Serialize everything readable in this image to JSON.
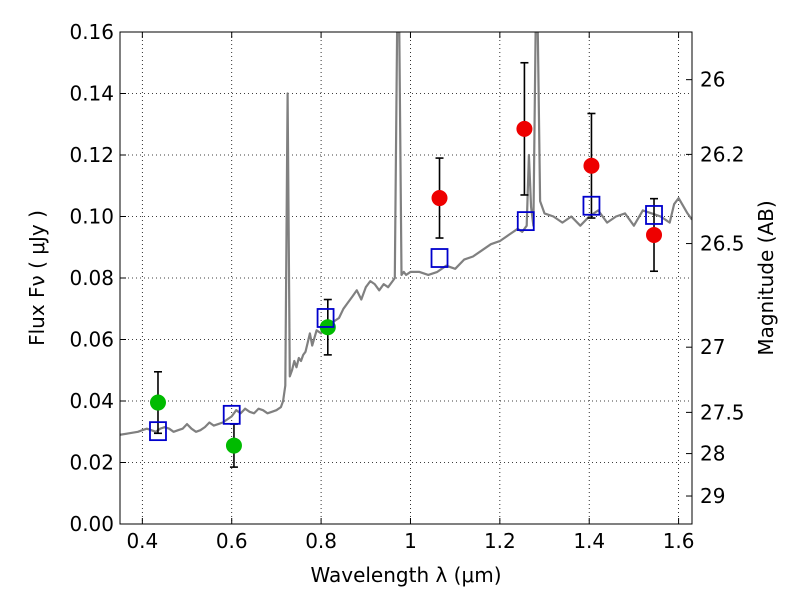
{
  "chart_data": {
    "type": "scatter",
    "xlabel": "Wavelength  λ (μm)",
    "ylabel": "Flux  Fν  ( μJy )",
    "ylabel_right": "Magnitude (AB)",
    "xlim": [
      0.35,
      1.63
    ],
    "ylim": [
      0.0,
      0.16
    ],
    "grid": true,
    "x_ticks": [
      0.4,
      0.6,
      0.8,
      1.0,
      1.2,
      1.4,
      1.6
    ],
    "x_tick_labels": [
      "0.4",
      "0.6",
      "0.8",
      "1",
      "1.2",
      "1.4",
      "1.6"
    ],
    "y_ticks": [
      0.0,
      0.02,
      0.04,
      0.06,
      0.08,
      0.1,
      0.12,
      0.14,
      0.16
    ],
    "y_tick_labels": [
      "0.00",
      "0.02",
      "0.04",
      "0.06",
      "0.08",
      "0.10",
      "0.12",
      "0.14",
      "0.16"
    ],
    "right_ticks": [
      {
        "label": "26",
        "flux": 0.1445
      },
      {
        "label": "26.2",
        "flux": 0.1202
      },
      {
        "label": "26.5",
        "flux": 0.0912
      },
      {
        "label": "27",
        "flux": 0.0575
      },
      {
        "label": "27.5",
        "flux": 0.0363
      },
      {
        "label": "28",
        "flux": 0.0229
      },
      {
        "label": "29",
        "flux": 0.0091
      }
    ],
    "series": [
      {
        "kind": "line",
        "color": "#808080",
        "x": [
          0.35,
          0.37,
          0.39,
          0.4,
          0.41,
          0.42,
          0.43,
          0.44,
          0.45,
          0.46,
          0.47,
          0.48,
          0.49,
          0.5,
          0.51,
          0.52,
          0.53,
          0.54,
          0.55,
          0.56,
          0.57,
          0.58,
          0.59,
          0.6,
          0.61,
          0.62,
          0.63,
          0.64,
          0.65,
          0.66,
          0.67,
          0.68,
          0.69,
          0.7,
          0.71,
          0.715,
          0.72,
          0.725,
          0.73,
          0.735,
          0.74,
          0.745,
          0.75,
          0.755,
          0.76,
          0.765,
          0.77,
          0.775,
          0.78,
          0.79,
          0.8,
          0.81,
          0.82,
          0.83,
          0.84,
          0.85,
          0.86,
          0.87,
          0.88,
          0.89,
          0.9,
          0.91,
          0.92,
          0.93,
          0.94,
          0.95,
          0.96,
          0.965,
          0.97,
          0.975,
          0.98,
          0.985,
          0.99,
          1.0,
          1.02,
          1.04,
          1.06,
          1.08,
          1.1,
          1.12,
          1.14,
          1.16,
          1.18,
          1.2,
          1.22,
          1.24,
          1.25,
          1.26,
          1.265,
          1.27,
          1.275,
          1.28,
          1.285,
          1.29,
          1.3,
          1.32,
          1.34,
          1.36,
          1.38,
          1.4,
          1.42,
          1.44,
          1.46,
          1.48,
          1.5,
          1.52,
          1.54,
          1.56,
          1.58,
          1.59,
          1.6,
          1.62,
          1.63
        ],
        "y": [
          0.029,
          0.0295,
          0.03,
          0.0305,
          0.031,
          0.0305,
          0.03,
          0.031,
          0.0315,
          0.031,
          0.03,
          0.0305,
          0.031,
          0.0325,
          0.031,
          0.03,
          0.0305,
          0.0315,
          0.033,
          0.032,
          0.0325,
          0.033,
          0.034,
          0.035,
          0.037,
          0.036,
          0.0375,
          0.0365,
          0.036,
          0.0375,
          0.037,
          0.036,
          0.0365,
          0.037,
          0.038,
          0.04,
          0.045,
          0.14,
          0.048,
          0.05,
          0.053,
          0.051,
          0.054,
          0.053,
          0.055,
          0.056,
          0.059,
          0.062,
          0.058,
          0.063,
          0.062,
          0.065,
          0.064,
          0.066,
          0.067,
          0.07,
          0.072,
          0.074,
          0.076,
          0.073,
          0.077,
          0.079,
          0.078,
          0.076,
          0.078,
          0.077,
          0.079,
          0.08,
          0.16,
          0.16,
          0.081,
          0.082,
          0.081,
          0.082,
          0.082,
          0.081,
          0.082,
          0.084,
          0.083,
          0.086,
          0.087,
          0.089,
          0.091,
          0.092,
          0.094,
          0.096,
          0.095,
          0.097,
          0.12,
          0.103,
          0.097,
          0.16,
          0.16,
          0.105,
          0.101,
          0.1,
          0.098,
          0.1,
          0.097,
          0.1,
          0.102,
          0.098,
          0.1,
          0.101,
          0.097,
          0.102,
          0.101,
          0.1,
          0.098,
          0.104,
          0.106,
          0.101,
          0.099
        ]
      },
      {
        "kind": "points",
        "color": "#00bb00",
        "x": [
          0.435,
          0.605,
          0.815
        ],
        "y": [
          0.0395,
          0.0255,
          0.064
        ],
        "err": [
          0.01,
          0.007,
          0.009
        ]
      },
      {
        "kind": "points",
        "color": "#ee0000",
        "x": [
          1.065,
          1.255,
          1.405,
          1.545
        ],
        "y": [
          0.106,
          0.1285,
          0.1165,
          0.094
        ],
        "err": [
          0.013,
          0.0215,
          0.017,
          0.0118
        ]
      },
      {
        "kind": "squares",
        "color": "#0000cc",
        "x": [
          0.435,
          0.6,
          0.81,
          1.065,
          1.258,
          1.405,
          1.545
        ],
        "y": [
          0.0302,
          0.0355,
          0.067,
          0.0865,
          0.0985,
          0.1035,
          0.1005
        ]
      }
    ]
  }
}
